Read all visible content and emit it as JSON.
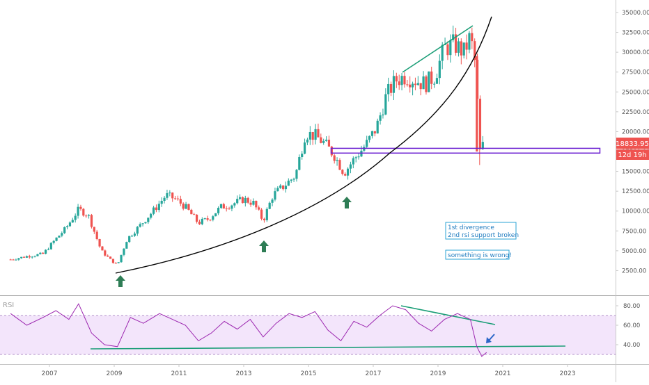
{
  "colors": {
    "up": "#26a69a",
    "down": "#ef5350",
    "curve": "#000000",
    "trendline": "#1b9e77",
    "support_box": "#6a1fd1",
    "arrow": "#2e7d55",
    "rsi_line": "#9c27b0",
    "rsi_band": "#f3e5fb",
    "note_border": "#29a3d6",
    "note_text": "#1f7bbf",
    "price_tag": "#ef5350",
    "axis_text": "#555555"
  },
  "price_axis": {
    "min": 0,
    "max": 35000,
    "ticks": [
      "35000.00",
      "32500.00",
      "30000.00",
      "27500.00",
      "25000.00",
      "22500.00",
      "20000.00",
      "17500.00",
      "15000.00",
      "12500.00",
      "10000.00",
      "7500.00",
      "5000.00",
      "2500.00"
    ]
  },
  "rsi_axis": {
    "label": "RSI",
    "min": 20,
    "max": 90,
    "ticks": [
      "80.00",
      "60.00",
      "40.00"
    ],
    "band": [
      30,
      70
    ]
  },
  "time_axis": {
    "ticks": [
      "2007",
      "2009",
      "2011",
      "2013",
      "2015",
      "2017",
      "2019",
      "2021",
      "2023"
    ]
  },
  "current_price": {
    "value": "18833.95",
    "countdown": "12d 19h"
  },
  "annotations": {
    "note1_line1": "1st divergence",
    "note1_line2": "2nd rsi support broken",
    "note2": "something is wrong!"
  },
  "chart_data": [
    {
      "type": "candlestick",
      "title": "",
      "ylim": [
        0,
        35000
      ],
      "support_zone": [
        17300,
        17900
      ],
      "close_series": {
        "x": [
          2005.8,
          2006.3,
          2006.8,
          2007.2,
          2007.5,
          2007.9,
          2008.2,
          2008.6,
          2008.9,
          2009.1,
          2009.4,
          2009.8,
          2010.2,
          2010.6,
          2010.9,
          2011.2,
          2011.6,
          2011.9,
          2012.3,
          2012.6,
          2013.0,
          2013.3,
          2013.6,
          2013.9,
          2014.2,
          2014.6,
          2014.9,
          2015.2,
          2015.5,
          2015.8,
          2016.1,
          2016.4,
          2016.8,
          2017.1,
          2017.4,
          2017.7,
          2018.0,
          2018.3,
          2018.6,
          2018.9,
          2019.2,
          2019.5,
          2019.8,
          2020.0,
          2020.15,
          2020.3,
          2020.45
        ],
        "y": [
          3900,
          4300,
          4600,
          6500,
          7800,
          10200,
          9500,
          5000,
          3800,
          3200,
          6500,
          8200,
          10000,
          12000,
          11500,
          10500,
          8500,
          9000,
          10500,
          10800,
          11500,
          11000,
          8800,
          12000,
          13000,
          14500,
          19800,
          19500,
          18500,
          17000,
          14800,
          16500,
          18500,
          20500,
          24500,
          26500,
          27000,
          26500,
          26000,
          27000,
          30500,
          31000,
          30000,
          32000,
          28500,
          17500,
          18834
        ]
      }
    },
    {
      "type": "line",
      "title": "",
      "ylabel": "RSI",
      "ylim": [
        20,
        90
      ],
      "band": [
        30,
        70
      ],
      "x": [
        2005.8,
        2006.3,
        2006.8,
        2007.2,
        2007.6,
        2007.9,
        2008.3,
        2008.7,
        2009.1,
        2009.5,
        2009.9,
        2010.4,
        2010.8,
        2011.2,
        2011.6,
        2012.0,
        2012.4,
        2012.8,
        2013.2,
        2013.6,
        2014.0,
        2014.4,
        2014.8,
        2015.2,
        2015.6,
        2016.0,
        2016.4,
        2016.8,
        2017.2,
        2017.6,
        2018.0,
        2018.4,
        2018.8,
        2019.2,
        2019.6,
        2020.0,
        2020.2,
        2020.35,
        2020.5
      ],
      "y": [
        72,
        60,
        68,
        75,
        66,
        82,
        52,
        40,
        38,
        68,
        62,
        72,
        66,
        60,
        44,
        52,
        64,
        56,
        66,
        48,
        62,
        72,
        68,
        74,
        55,
        44,
        64,
        58,
        70,
        80,
        76,
        62,
        54,
        66,
        72,
        66,
        38,
        28,
        32
      ]
    }
  ]
}
